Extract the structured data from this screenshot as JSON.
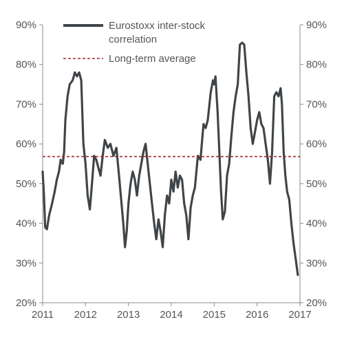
{
  "chart_data": {
    "type": "line",
    "xlim": [
      2011,
      2017
    ],
    "ylim": [
      20,
      90
    ],
    "x_ticks": [
      2011,
      2012,
      2013,
      2014,
      2015,
      2016,
      2017
    ],
    "x_tick_labels": [
      "2011",
      "2012",
      "2013",
      "2014",
      "2015",
      "2016",
      "2017"
    ],
    "y_ticks": [
      20,
      30,
      40,
      50,
      60,
      70,
      80,
      90
    ],
    "y_tick_labels": [
      "20%",
      "30%",
      "40%",
      "50%",
      "60%",
      "70%",
      "80%",
      "90%"
    ],
    "grid": false,
    "legend_position": "top",
    "series": [
      {
        "name": "Eurostoxx inter-stock correlation",
        "color": "#404549",
        "style": "solid",
        "points": [
          [
            2011.0,
            53
          ],
          [
            2011.03,
            47
          ],
          [
            2011.06,
            39
          ],
          [
            2011.1,
            38.5
          ],
          [
            2011.15,
            42
          ],
          [
            2011.22,
            45
          ],
          [
            2011.28,
            48
          ],
          [
            2011.33,
            51
          ],
          [
            2011.38,
            53
          ],
          [
            2011.42,
            56
          ],
          [
            2011.47,
            55
          ],
          [
            2011.5,
            58
          ],
          [
            2011.53,
            66
          ],
          [
            2011.58,
            72
          ],
          [
            2011.63,
            75
          ],
          [
            2011.7,
            76
          ],
          [
            2011.75,
            78
          ],
          [
            2011.8,
            77
          ],
          [
            2011.85,
            78
          ],
          [
            2011.9,
            76
          ],
          [
            2011.95,
            60
          ],
          [
            2012.0,
            55
          ],
          [
            2012.05,
            47
          ],
          [
            2012.1,
            43.5
          ],
          [
            2012.15,
            50
          ],
          [
            2012.2,
            57
          ],
          [
            2012.25,
            56
          ],
          [
            2012.3,
            54
          ],
          [
            2012.35,
            52
          ],
          [
            2012.4,
            57
          ],
          [
            2012.45,
            61
          ],
          [
            2012.52,
            59
          ],
          [
            2012.58,
            60
          ],
          [
            2012.65,
            57
          ],
          [
            2012.72,
            59
          ],
          [
            2012.78,
            52
          ],
          [
            2012.83,
            46
          ],
          [
            2012.88,
            40
          ],
          [
            2012.92,
            34
          ],
          [
            2012.96,
            38
          ],
          [
            2013.0,
            45
          ],
          [
            2013.05,
            50
          ],
          [
            2013.1,
            53
          ],
          [
            2013.15,
            51
          ],
          [
            2013.2,
            47
          ],
          [
            2013.25,
            52
          ],
          [
            2013.3,
            55
          ],
          [
            2013.35,
            58
          ],
          [
            2013.4,
            60
          ],
          [
            2013.45,
            55
          ],
          [
            2013.5,
            50
          ],
          [
            2013.55,
            45
          ],
          [
            2013.6,
            40
          ],
          [
            2013.65,
            36
          ],
          [
            2013.7,
            41
          ],
          [
            2013.75,
            38
          ],
          [
            2013.8,
            34
          ],
          [
            2013.85,
            42
          ],
          [
            2013.9,
            47
          ],
          [
            2013.95,
            45
          ],
          [
            2014.0,
            51
          ],
          [
            2014.05,
            48
          ],
          [
            2014.1,
            53
          ],
          [
            2014.15,
            49
          ],
          [
            2014.2,
            52
          ],
          [
            2014.25,
            51
          ],
          [
            2014.3,
            45
          ],
          [
            2014.35,
            42
          ],
          [
            2014.4,
            36
          ],
          [
            2014.45,
            44
          ],
          [
            2014.5,
            47
          ],
          [
            2014.55,
            49
          ],
          [
            2014.62,
            57
          ],
          [
            2014.68,
            56
          ],
          [
            2014.75,
            65
          ],
          [
            2014.8,
            64
          ],
          [
            2014.85,
            66
          ],
          [
            2014.92,
            73
          ],
          [
            2014.97,
            76
          ],
          [
            2015.0,
            75
          ],
          [
            2015.03,
            77
          ],
          [
            2015.08,
            68
          ],
          [
            2015.12,
            58
          ],
          [
            2015.16,
            48
          ],
          [
            2015.2,
            41
          ],
          [
            2015.25,
            43
          ],
          [
            2015.3,
            52
          ],
          [
            2015.35,
            55
          ],
          [
            2015.4,
            62
          ],
          [
            2015.45,
            68
          ],
          [
            2015.5,
            72
          ],
          [
            2015.55,
            75
          ],
          [
            2015.6,
            85
          ],
          [
            2015.65,
            85.5
          ],
          [
            2015.7,
            85
          ],
          [
            2015.75,
            78
          ],
          [
            2015.8,
            72
          ],
          [
            2015.85,
            64
          ],
          [
            2015.9,
            60
          ],
          [
            2015.95,
            63
          ],
          [
            2016.0,
            66
          ],
          [
            2016.05,
            68
          ],
          [
            2016.1,
            65
          ],
          [
            2016.15,
            64
          ],
          [
            2016.2,
            60
          ],
          [
            2016.25,
            56
          ],
          [
            2016.3,
            50
          ],
          [
            2016.35,
            58
          ],
          [
            2016.4,
            72
          ],
          [
            2016.45,
            73
          ],
          [
            2016.5,
            72
          ],
          [
            2016.55,
            74
          ],
          [
            2016.58,
            70
          ],
          [
            2016.62,
            58
          ],
          [
            2016.66,
            52
          ],
          [
            2016.7,
            48
          ],
          [
            2016.75,
            46
          ],
          [
            2016.8,
            40
          ],
          [
            2016.85,
            35
          ],
          [
            2016.9,
            31
          ],
          [
            2016.95,
            27
          ]
        ]
      },
      {
        "name": "Long-term average",
        "color": "#a3262b",
        "style": "dashed",
        "points": [
          [
            2011,
            56.8
          ],
          [
            2017,
            56.8
          ]
        ]
      }
    ]
  }
}
